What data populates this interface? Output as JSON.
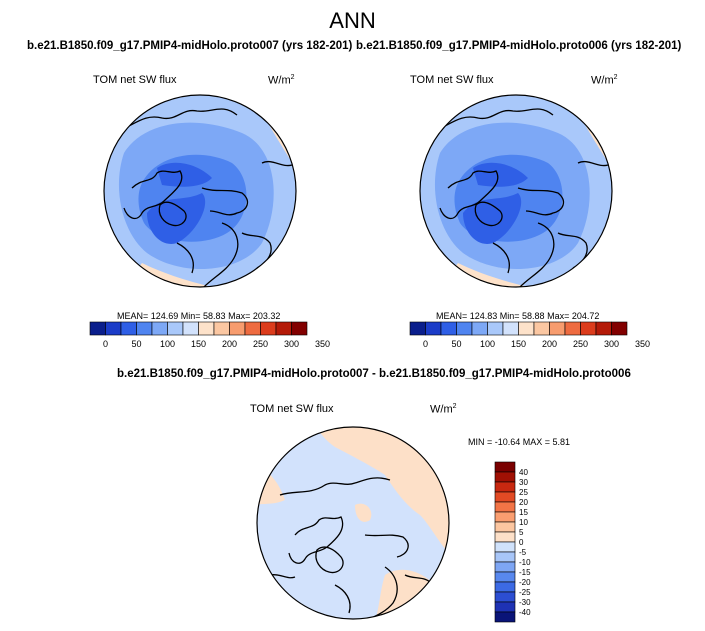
{
  "title": "ANN",
  "top_left": {
    "case_title": "b.e21.B1850.f09_g17.PMIP4-midHolo.proto007 (yrs 182-201)",
    "variable": "TOM net SW flux",
    "units_base": "W/m",
    "units_exp": "2",
    "stats": "MEAN= 124.69  Min=  58.83  Max= 203.32"
  },
  "top_right": {
    "case_title": "b.e21.B1850.f09_g17.PMIP4-midHolo.proto006 (yrs 182-201)",
    "variable": "TOM net SW flux",
    "units_base": "W/m",
    "units_exp": "2",
    "stats": "MEAN= 124.83  Min=  58.88  Max= 204.72"
  },
  "bottom": {
    "case_title": "b.e21.B1850.f09_g17.PMIP4-midHolo.proto007 - b.e21.B1850.f09_g17.PMIP4-midHolo.proto006",
    "variable": "TOM net SW flux",
    "units_base": "W/m",
    "units_exp": "2",
    "stats": "MIN = -10.64 MAX =  5.81"
  },
  "colorbars": {
    "absolute": {
      "colors": [
        "#0a1e8c",
        "#1b3cc8",
        "#2f5fe6",
        "#4f84f0",
        "#7da8f6",
        "#a9c8fa",
        "#d2e2fc",
        "#fde2ca",
        "#fbc7a2",
        "#f79c6e",
        "#ee6b40",
        "#dc3c1c",
        "#b41a08",
        "#820000"
      ],
      "tick_labels": [
        "0",
        "50",
        "100",
        "150",
        "200",
        "250",
        "300",
        "350"
      ]
    },
    "difference": {
      "colors": [
        "#0a1478",
        "#1e32b4",
        "#2c4ed2",
        "#3c6ae4",
        "#5888ee",
        "#7ea6f4",
        "#a8c6f8",
        "#d0e2fb",
        "#fde0c8",
        "#fcc6a0",
        "#fa9e70",
        "#f27446",
        "#e24a24",
        "#c82810",
        "#a01004",
        "#7a0000"
      ],
      "tick_labels": [
        "-40",
        "-30",
        "-25",
        "-20",
        "-15",
        "-10",
        "-5",
        "0",
        "5",
        "10",
        "15",
        "20",
        "25",
        "30",
        "40"
      ]
    }
  },
  "map_colors": {
    "ocean_ring": "#a9c8fa",
    "mid": "#7da8f6",
    "inner": "#4f84f0",
    "core": "#2f5fe6",
    "warm_edge": "#fde2ca",
    "diff_base": "#d2e2fc",
    "diff_warm": "#fde0c8"
  }
}
